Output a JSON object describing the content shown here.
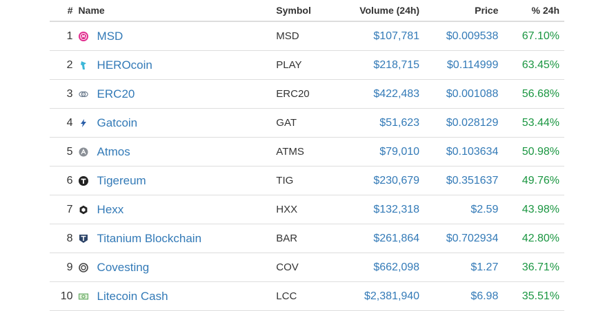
{
  "header": {
    "rank": "#",
    "name": "Name",
    "symbol": "Symbol",
    "volume": "Volume (24h)",
    "price": "Price",
    "change": "% 24h"
  },
  "rows": [
    {
      "rank": "1",
      "name": "MSD",
      "symbol": "MSD",
      "volume": "$107,781",
      "price": "$0.009538",
      "change": "67.10%",
      "icon": "msd-icon"
    },
    {
      "rank": "2",
      "name": "HEROcoin",
      "symbol": "PLAY",
      "volume": "$218,715",
      "price": "$0.114999",
      "change": "63.45%",
      "icon": "herocoin-icon"
    },
    {
      "rank": "3",
      "name": "ERC20",
      "symbol": "ERC20",
      "volume": "$422,483",
      "price": "$0.001088",
      "change": "56.68%",
      "icon": "erc20-icon"
    },
    {
      "rank": "4",
      "name": "Gatcoin",
      "symbol": "GAT",
      "volume": "$51,623",
      "price": "$0.028129",
      "change": "53.44%",
      "icon": "gatcoin-icon"
    },
    {
      "rank": "5",
      "name": "Atmos",
      "symbol": "ATMS",
      "volume": "$79,010",
      "price": "$0.103634",
      "change": "50.98%",
      "icon": "atmos-icon"
    },
    {
      "rank": "6",
      "name": "Tigereum",
      "symbol": "TIG",
      "volume": "$230,679",
      "price": "$0.351637",
      "change": "49.76%",
      "icon": "tigereum-icon"
    },
    {
      "rank": "7",
      "name": "Hexx",
      "symbol": "HXX",
      "volume": "$132,318",
      "price": "$2.59",
      "change": "43.98%",
      "icon": "hexx-icon"
    },
    {
      "rank": "8",
      "name": "Titanium Blockchain",
      "symbol": "BAR",
      "volume": "$261,864",
      "price": "$0.702934",
      "change": "42.80%",
      "icon": "titanium-blockchain-icon"
    },
    {
      "rank": "9",
      "name": "Covesting",
      "symbol": "COV",
      "volume": "$662,098",
      "price": "$1.27",
      "change": "36.71%",
      "icon": "covesting-icon"
    },
    {
      "rank": "10",
      "name": "Litecoin Cash",
      "symbol": "LCC",
      "volume": "$2,381,940",
      "price": "$6.98",
      "change": "35.51%",
      "icon": "litecoin-cash-icon"
    }
  ],
  "colors": {
    "link": "#337ab7",
    "positive": "#1a9641",
    "border": "#dddddd"
  }
}
